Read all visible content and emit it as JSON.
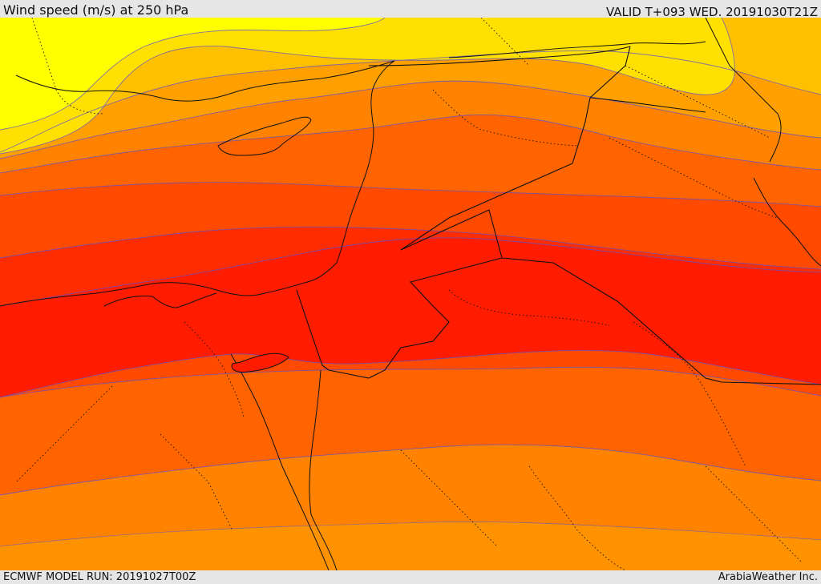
{
  "header": {
    "title": "Wind speed (m/s) at 250 hPa",
    "valid_time": "VALID T+093 WED. 20191030T21Z"
  },
  "footer": {
    "model_run": "ECMWF MODEL RUN: 20191027T00Z",
    "provider": "ArabiaWeather Inc."
  },
  "map": {
    "colors": {
      "band_1": "#ffff00",
      "band_2": "#ffe000",
      "band_3": "#ffc000",
      "band_4": "#ffa000",
      "band_5": "#ff8200",
      "band_6": "#ff6400",
      "band_7": "#ff4a00",
      "band_8": "#ff2c00",
      "band_9": "#ff1c00",
      "contour": "#5a4fd0",
      "border": "#111111"
    }
  }
}
